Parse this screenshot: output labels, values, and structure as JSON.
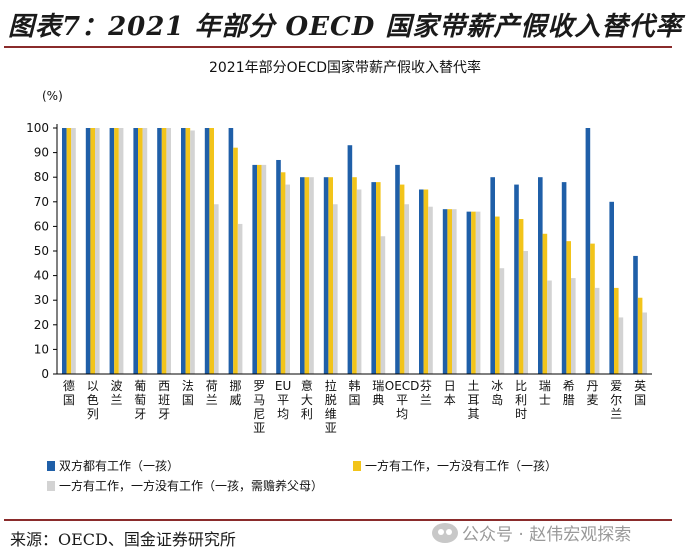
{
  "figure": {
    "caption": "图表7：2021 年部分 OECD 国家带薪产假收入替代率",
    "source": "来源：OECD、国金证券研究所",
    "watermark": "公众号 · 赵伟宏观探索"
  },
  "colors": {
    "series1": "#1f5fa8",
    "series2": "#f2c41a",
    "series3": "#d3d3d3"
  },
  "chart_data": {
    "type": "bar",
    "title": "2021年部分OECD国家带薪产假收入替代率",
    "ylabel": "(%)",
    "xlabel": "",
    "ylim": [
      0,
      100
    ],
    "yticks": [
      0,
      10,
      20,
      30,
      40,
      50,
      60,
      70,
      80,
      90,
      100
    ],
    "grid": false,
    "legend_position": "bottom",
    "categories": [
      "德国",
      "以色列",
      "波兰",
      "葡萄牙",
      "西班牙",
      "法国",
      "荷兰",
      "挪威",
      "罗马尼亚",
      "EU平均",
      "意大利",
      "拉脱维亚",
      "韩国",
      "瑞典",
      "OECD平均",
      "芬兰",
      "日本",
      "土耳其",
      "冰岛",
      "比利时",
      "瑞士",
      "希腊",
      "丹麦",
      "爱尔兰",
      "英国"
    ],
    "series": [
      {
        "name": "双方都有工作（一孩）",
        "values": [
          100,
          100,
          100,
          100,
          100,
          100,
          100,
          100,
          85,
          87,
          80,
          80,
          93,
          78,
          85,
          75,
          67,
          66,
          80,
          77,
          80,
          78,
          100,
          70,
          48
        ]
      },
      {
        "name": "一方有工作，一方没有工作（一孩）",
        "values": [
          100,
          100,
          100,
          100,
          100,
          100,
          100,
          92,
          85,
          82,
          80,
          80,
          80,
          78,
          77,
          75,
          67,
          66,
          64,
          63,
          57,
          54,
          53,
          35,
          31
        ]
      },
      {
        "name": "一方有工作，一方没有工作（一孩，需赡养父母）",
        "values": [
          100,
          100,
          100,
          100,
          100,
          99,
          69,
          61,
          85,
          77,
          80,
          69,
          75,
          56,
          69,
          68,
          67,
          66,
          43,
          50,
          38,
          39,
          35,
          23,
          25
        ]
      }
    ]
  }
}
